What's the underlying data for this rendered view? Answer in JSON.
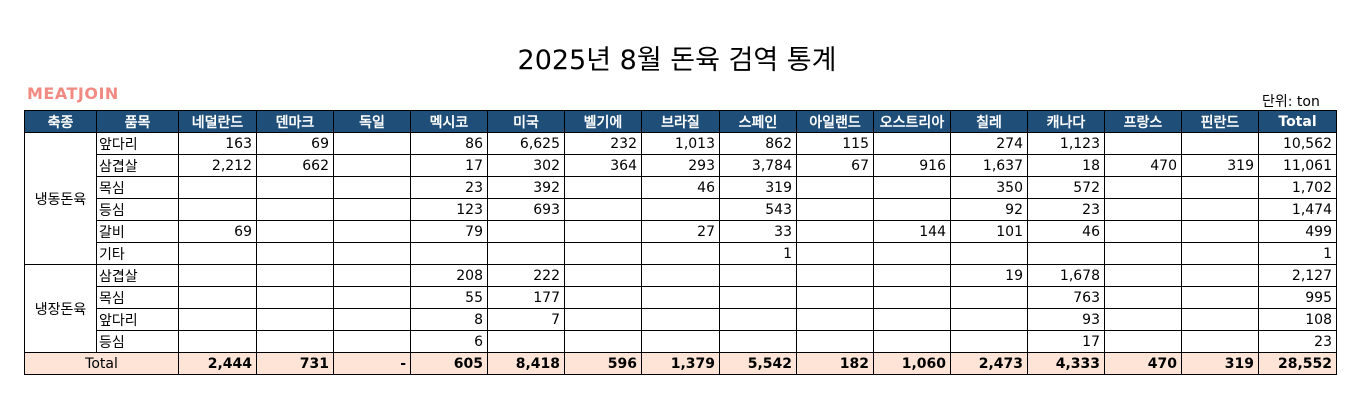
{
  "title": "2025년 8월 돈육 검역 통계",
  "logo": "MEATJOIN",
  "unit": "단위: ton",
  "headers": [
    "축종",
    "품목",
    "네덜란드",
    "덴마크",
    "독일",
    "멕시코",
    "미국",
    "벨기에",
    "브라질",
    "스페인",
    "아일랜드",
    "오스트리아",
    "칠레",
    "캐나다",
    "프랑스",
    "핀란드",
    "Total"
  ],
  "groups": [
    {
      "species": "냉동돈육",
      "rows": [
        {
          "item": "앞다리",
          "values": [
            "163",
            "69",
            "",
            "86",
            "6,625",
            "232",
            "1,013",
            "862",
            "115",
            "",
            "274",
            "1,123",
            "",
            "",
            "10,562"
          ]
        },
        {
          "item": "삼겹살",
          "values": [
            "2,212",
            "662",
            "",
            "17",
            "302",
            "364",
            "293",
            "3,784",
            "67",
            "916",
            "1,637",
            "18",
            "470",
            "319",
            "11,061"
          ]
        },
        {
          "item": "목심",
          "values": [
            "",
            "",
            "",
            "23",
            "392",
            "",
            "46",
            "319",
            "",
            "",
            "350",
            "572",
            "",
            "",
            "1,702"
          ]
        },
        {
          "item": "등심",
          "values": [
            "",
            "",
            "",
            "123",
            "693",
            "",
            "",
            "543",
            "",
            "",
            "92",
            "23",
            "",
            "",
            "1,474"
          ]
        },
        {
          "item": "갈비",
          "values": [
            "69",
            "",
            "",
            "79",
            "",
            "",
            "27",
            "33",
            "",
            "144",
            "101",
            "46",
            "",
            "",
            "499"
          ]
        },
        {
          "item": "기타",
          "values": [
            "",
            "",
            "",
            "",
            "",
            "",
            "",
            "1",
            "",
            "",
            "",
            "",
            "",
            "",
            "1"
          ]
        }
      ]
    },
    {
      "species": "냉장돈육",
      "rows": [
        {
          "item": "삼겹살",
          "values": [
            "",
            "",
            "",
            "208",
            "222",
            "",
            "",
            "",
            "",
            "",
            "19",
            "1,678",
            "",
            "",
            "2,127"
          ]
        },
        {
          "item": "목심",
          "values": [
            "",
            "",
            "",
            "55",
            "177",
            "",
            "",
            "",
            "",
            "",
            "",
            "763",
            "",
            "",
            "995"
          ]
        },
        {
          "item": "앞다리",
          "values": [
            "",
            "",
            "",
            "8",
            "7",
            "",
            "",
            "",
            "",
            "",
            "",
            "93",
            "",
            "",
            "108"
          ]
        },
        {
          "item": "등심",
          "values": [
            "",
            "",
            "",
            "6",
            "",
            "",
            "",
            "",
            "",
            "",
            "",
            "17",
            "",
            "",
            "23"
          ]
        }
      ]
    }
  ],
  "total": {
    "label": "Total",
    "values": [
      "2,444",
      "731",
      "-",
      "605",
      "8,418",
      "596",
      "1,379",
      "5,542",
      "182",
      "1,060",
      "2,473",
      "4,333",
      "470",
      "319",
      "28,552"
    ]
  },
  "colors": {
    "header_bg": "#1f4e79",
    "total_bg": "#fde4d6",
    "logo": "#f08a82"
  }
}
